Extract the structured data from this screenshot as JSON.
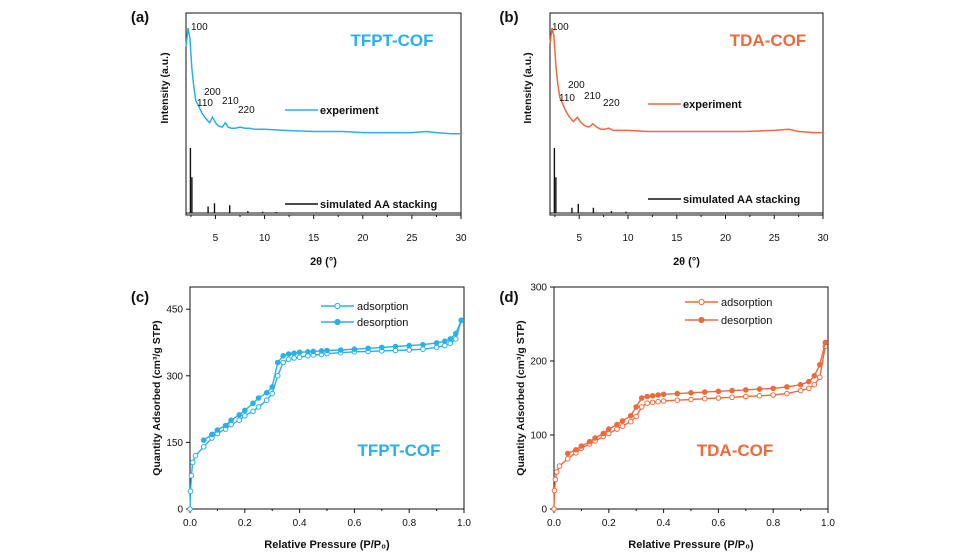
{
  "colors": {
    "blue": "#2ab0e8",
    "orange": "#ee6a3c",
    "black": "#111111"
  },
  "chart_data": [
    {
      "panel": "(a)",
      "type": "line",
      "title": "TFPT-COF",
      "color": "#2ab0e8",
      "xlabel": "2θ (°)",
      "ylabel": "Intensity (a.u.)",
      "xlim": [
        2,
        30
      ],
      "xticks": [
        5,
        10,
        15,
        20,
        25,
        30
      ],
      "series": [
        {
          "name": "experiment",
          "x": [
            2.0,
            2.2,
            2.4,
            2.6,
            2.8,
            3.0,
            3.3,
            3.6,
            4.0,
            4.4,
            4.7,
            5.0,
            5.3,
            5.7,
            6.0,
            6.3,
            6.6,
            7.0,
            7.5,
            8.0,
            8.5,
            9.0,
            10,
            12,
            15,
            18,
            20,
            22,
            25,
            26.5,
            27.5,
            29,
            30
          ],
          "y": [
            0.82,
            0.99,
            0.9,
            0.62,
            0.45,
            0.33,
            0.28,
            0.22,
            0.17,
            0.13,
            0.18,
            0.13,
            0.1,
            0.09,
            0.13,
            0.09,
            0.08,
            0.08,
            0.09,
            0.08,
            0.08,
            0.07,
            0.07,
            0.06,
            0.05,
            0.05,
            0.04,
            0.04,
            0.04,
            0.05,
            0.04,
            0.03,
            0.03
          ]
        },
        {
          "name": "simulated AA stacking",
          "sticks": [
            [
              2.45,
              1.0
            ],
            [
              2.6,
              0.55
            ],
            [
              4.25,
              0.1
            ],
            [
              4.9,
              0.15
            ],
            [
              6.45,
              0.12
            ],
            [
              8.3,
              0.03
            ],
            [
              9.8,
              0.02
            ],
            [
              11.2,
              0.015
            ]
          ]
        }
      ],
      "peaks": [
        "100",
        "110",
        "200",
        "210",
        "220"
      ]
    },
    {
      "panel": "(b)",
      "type": "line",
      "title": "TDA-COF",
      "color": "#ee6a3c",
      "xlabel": "2θ (°)",
      "ylabel": "Intensity (a.u.)",
      "xlim": [
        2,
        30
      ],
      "xticks": [
        5,
        10,
        15,
        20,
        25,
        30
      ],
      "series": [
        {
          "name": "experiment",
          "x": [
            2.0,
            2.2,
            2.4,
            2.6,
            2.8,
            3.0,
            3.3,
            3.6,
            4.0,
            4.4,
            4.8,
            5.2,
            5.6,
            6.0,
            6.4,
            6.8,
            7.2,
            7.6,
            8.0,
            8.5,
            9.0,
            10,
            12,
            15,
            18,
            20,
            22,
            25,
            26.5,
            27.5,
            29,
            30
          ],
          "y": [
            0.85,
            0.99,
            0.92,
            0.65,
            0.48,
            0.36,
            0.3,
            0.24,
            0.18,
            0.14,
            0.18,
            0.13,
            0.1,
            0.09,
            0.12,
            0.09,
            0.07,
            0.07,
            0.08,
            0.06,
            0.06,
            0.06,
            0.05,
            0.05,
            0.05,
            0.05,
            0.05,
            0.06,
            0.07,
            0.05,
            0.04,
            0.04
          ]
        },
        {
          "name": "simulated AA stacking",
          "sticks": [
            [
              2.45,
              1.0
            ],
            [
              2.6,
              0.55
            ],
            [
              4.25,
              0.08
            ],
            [
              4.9,
              0.14
            ],
            [
              6.45,
              0.08
            ],
            [
              8.3,
              0.03
            ],
            [
              9.8,
              0.02
            ]
          ]
        }
      ],
      "peaks": [
        "100",
        "110",
        "200",
        "210",
        "220"
      ]
    },
    {
      "panel": "(c)",
      "type": "line",
      "title": "TFPT-COF",
      "color": "#2ab0e8",
      "xlabel": "Relative Pressure (P/P₀)",
      "ylabel": "Quantity Adsorbed (cm³/g STP)",
      "xlim": [
        0,
        1
      ],
      "ylim": [
        0,
        500
      ],
      "xticks": [
        0.0,
        0.2,
        0.4,
        0.6,
        0.8,
        1.0
      ],
      "yticks": [
        0,
        150,
        300,
        450
      ],
      "series": [
        {
          "name": "adsorption",
          "marker": "open",
          "x": [
            0.0,
            0.002,
            0.005,
            0.01,
            0.02,
            0.05,
            0.08,
            0.1,
            0.13,
            0.15,
            0.18,
            0.2,
            0.23,
            0.25,
            0.28,
            0.3,
            0.32,
            0.34,
            0.36,
            0.38,
            0.4,
            0.43,
            0.45,
            0.48,
            0.5,
            0.55,
            0.6,
            0.65,
            0.7,
            0.75,
            0.8,
            0.85,
            0.9,
            0.93,
            0.95,
            0.97,
            0.99
          ],
          "y": [
            0,
            40,
            75,
            105,
            120,
            140,
            160,
            170,
            180,
            190,
            200,
            210,
            220,
            230,
            245,
            260,
            300,
            330,
            337,
            340,
            342,
            345,
            347,
            348,
            350,
            352,
            354,
            355,
            356,
            357,
            358,
            360,
            364,
            368,
            373,
            383,
            425
          ]
        },
        {
          "name": "desorption",
          "marker": "filled",
          "x": [
            0.99,
            0.97,
            0.95,
            0.93,
            0.9,
            0.85,
            0.8,
            0.75,
            0.7,
            0.65,
            0.6,
            0.55,
            0.5,
            0.48,
            0.45,
            0.43,
            0.4,
            0.38,
            0.36,
            0.34,
            0.32,
            0.3,
            0.28,
            0.25,
            0.23,
            0.2,
            0.18,
            0.15,
            0.13,
            0.1,
            0.08,
            0.05
          ],
          "y": [
            425,
            395,
            383,
            378,
            374,
            370,
            368,
            366,
            364,
            362,
            360,
            358,
            357,
            356,
            355,
            354,
            353,
            351,
            349,
            345,
            330,
            275,
            262,
            250,
            238,
            222,
            212,
            200,
            188,
            178,
            168,
            155
          ]
        }
      ]
    },
    {
      "panel": "(d)",
      "type": "line",
      "title": "TDA-COF",
      "color": "#ee6a3c",
      "xlabel": "Relative Pressure (P/P₀)",
      "ylabel": "Quantity Adsorbed (cm³/g STP)",
      "xlim": [
        0,
        1
      ],
      "ylim": [
        0,
        300
      ],
      "xticks": [
        0.0,
        0.2,
        0.4,
        0.6,
        0.8,
        1.0
      ],
      "yticks": [
        0,
        100,
        200,
        300
      ],
      "series": [
        {
          "name": "adsorption",
          "marker": "open",
          "x": [
            0.0,
            0.002,
            0.005,
            0.01,
            0.02,
            0.05,
            0.08,
            0.1,
            0.13,
            0.15,
            0.18,
            0.2,
            0.23,
            0.25,
            0.28,
            0.3,
            0.32,
            0.34,
            0.36,
            0.38,
            0.4,
            0.45,
            0.5,
            0.55,
            0.6,
            0.65,
            0.7,
            0.75,
            0.8,
            0.85,
            0.9,
            0.93,
            0.95,
            0.97,
            0.99
          ],
          "y": [
            0,
            25,
            40,
            50,
            58,
            68,
            76,
            82,
            88,
            92,
            98,
            102,
            108,
            112,
            118,
            125,
            138,
            143,
            144,
            145,
            146,
            147,
            148,
            149,
            150,
            151,
            152,
            153,
            154,
            156,
            160,
            163,
            168,
            178,
            220
          ]
        },
        {
          "name": "desorption",
          "marker": "filled",
          "x": [
            0.99,
            0.97,
            0.95,
            0.93,
            0.9,
            0.85,
            0.8,
            0.75,
            0.7,
            0.65,
            0.6,
            0.55,
            0.5,
            0.45,
            0.4,
            0.38,
            0.36,
            0.34,
            0.32,
            0.3,
            0.28,
            0.25,
            0.23,
            0.2,
            0.18,
            0.15,
            0.13,
            0.1,
            0.08,
            0.05
          ],
          "y": [
            225,
            195,
            180,
            172,
            168,
            165,
            163,
            162,
            161,
            160,
            159,
            158,
            157,
            156,
            155,
            154,
            153,
            152,
            150,
            138,
            126,
            119,
            114,
            108,
            102,
            96,
            91,
            85,
            80,
            75
          ]
        }
      ]
    }
  ]
}
